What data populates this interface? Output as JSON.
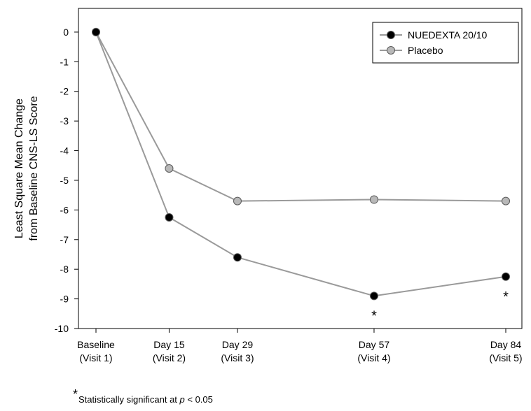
{
  "chart_data": {
    "type": "line",
    "ylabel": [
      "Least Square Mean Change",
      "from Baseline CNS-LS Score"
    ],
    "xlabel": "",
    "categories": [
      [
        "Baseline",
        "(Visit 1)"
      ],
      [
        "Day 15",
        "(Visit 2)"
      ],
      [
        "Day 29",
        "(Visit 3)"
      ],
      [
        "Day 57",
        "(Visit 4)"
      ],
      [
        "Day 84",
        "(Visit 5)"
      ]
    ],
    "x": [
      0,
      15,
      29,
      57,
      84
    ],
    "ylim": [
      -10,
      0.8
    ],
    "yticks": [
      "0",
      "-1",
      "-2",
      "-3",
      "-4",
      "-5",
      "-6",
      "-7",
      "-8",
      "-9",
      "-10"
    ],
    "series": [
      {
        "name": "NUEDEXTA 20/10",
        "values": [
          0,
          -6.25,
          -7.6,
          -8.9,
          -8.25
        ],
        "marker_color": "#000000",
        "significant": [
          false,
          false,
          false,
          true,
          true
        ]
      },
      {
        "name": "Placebo",
        "values": [
          0,
          -4.6,
          -5.7,
          -5.65,
          -5.7
        ],
        "marker_color": "#b8b8b8"
      }
    ],
    "line_color": "#9a9a9a",
    "significance_marker": "*",
    "legend_position": "top-right",
    "grid": false
  },
  "footnote": {
    "star": "*",
    "text": "Statistically significant at ",
    "p": "p",
    "tail": " < 0.05"
  }
}
